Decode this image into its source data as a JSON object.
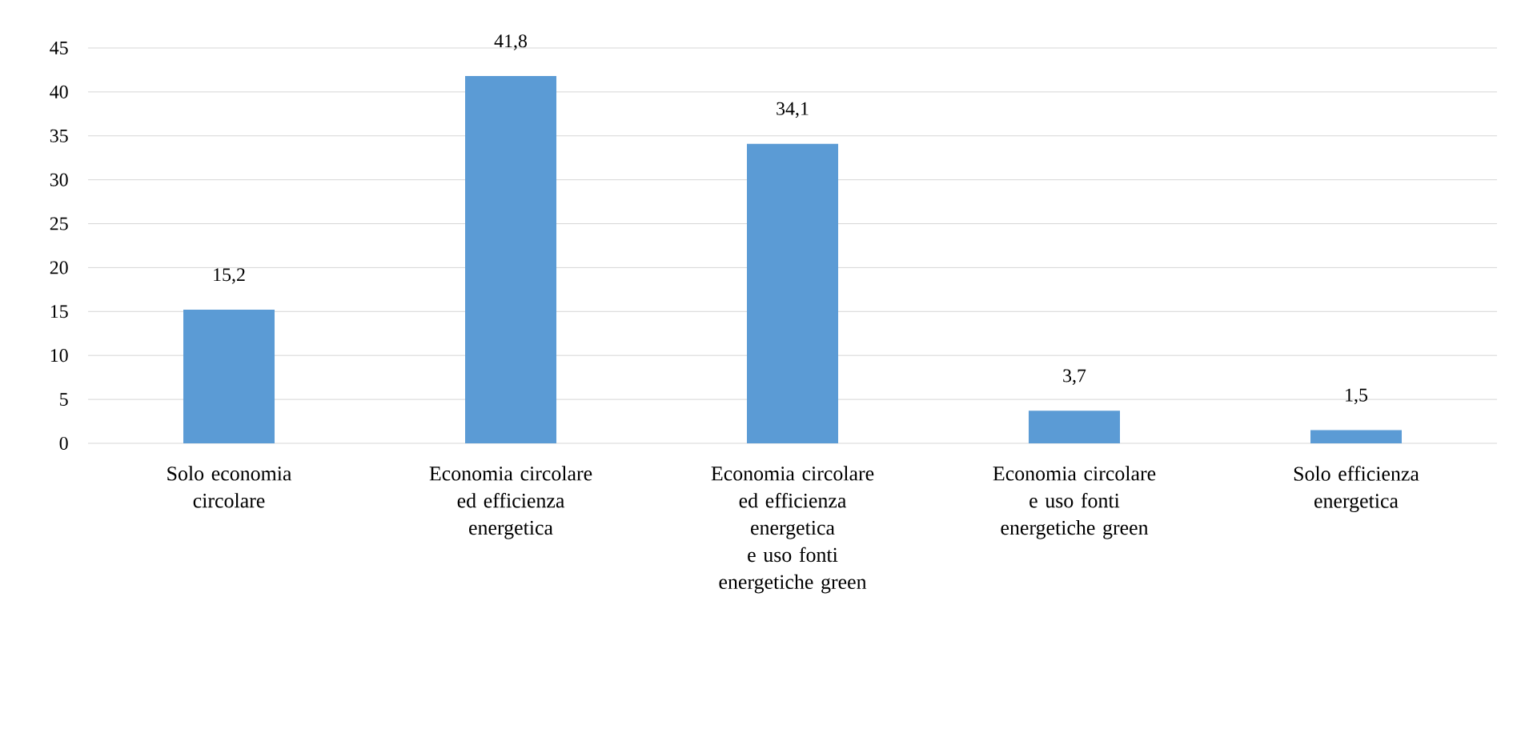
{
  "chart_data": {
    "type": "bar",
    "categories": [
      "Solo economia circolare",
      "Economia circolare ed efficienza energetica",
      "Economia circolare ed efficienza energetica e uso fonti energetiche green",
      "Economia circolare e uso fonti energetiche green",
      "Solo efficienza energetica"
    ],
    "values": [
      15.2,
      41.8,
      34.1,
      3.7,
      1.5
    ],
    "value_labels": [
      "15,2",
      "41,8",
      "34,1",
      "3,7",
      "1,5"
    ],
    "color": "#5b9bd5",
    "ylim": [
      0,
      45
    ],
    "yticks": [
      0,
      5,
      10,
      15,
      20,
      25,
      30,
      35,
      40,
      45
    ],
    "grid": "y"
  }
}
